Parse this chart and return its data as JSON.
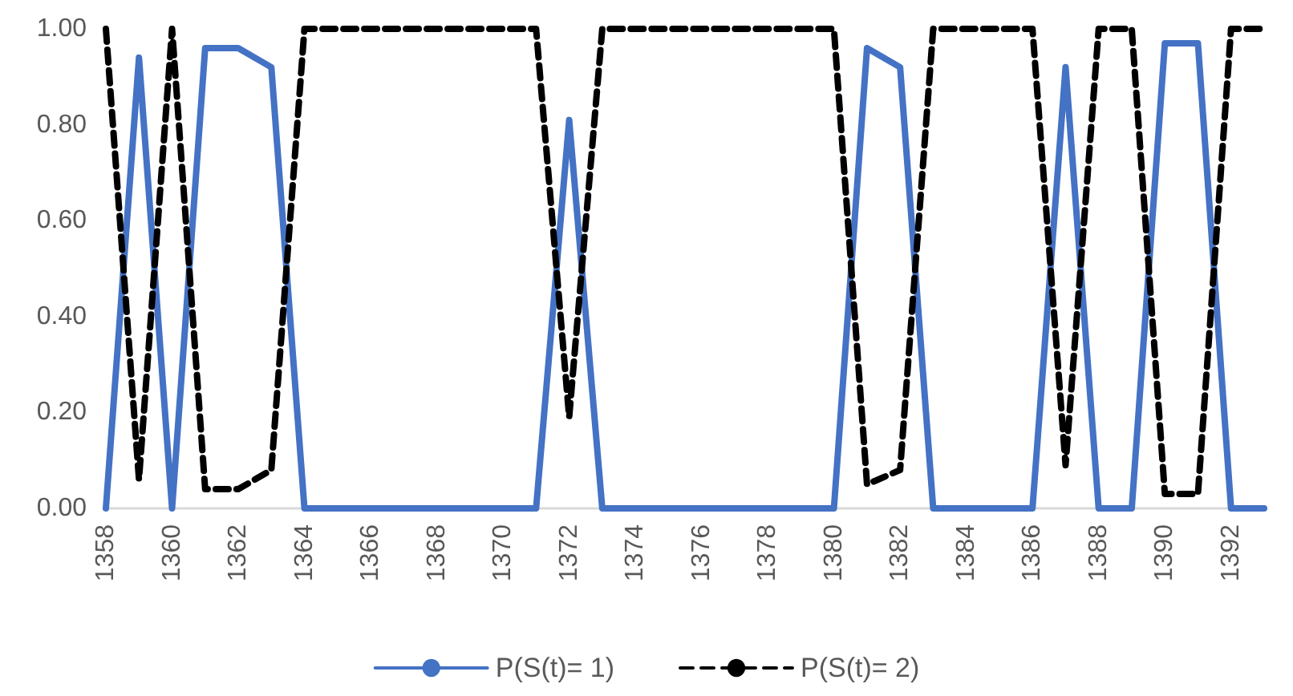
{
  "chart_data": {
    "type": "line",
    "categories": [
      "1358",
      null,
      "1360",
      null,
      "1362",
      null,
      "1364",
      null,
      "1366",
      null,
      "1368",
      null,
      "1370",
      null,
      "1372",
      null,
      "1374",
      null,
      "1376",
      null,
      "1378",
      null,
      "1380",
      null,
      "1382",
      null,
      "1384",
      null,
      "1386",
      null,
      "1388",
      null,
      "1390",
      null,
      "1392",
      null
    ],
    "series": [
      {
        "name": "P(S(t)= 1)",
        "color": "#4472c4",
        "line_style": "solid",
        "values": [
          0,
          0.94,
          0,
          0.96,
          0.96,
          0.92,
          0,
          0,
          0,
          0,
          0,
          0,
          0,
          0,
          0.81,
          0,
          0,
          0,
          0,
          0,
          0,
          0,
          0,
          0.96,
          0.92,
          0,
          0,
          0,
          0,
          0.92,
          0,
          0,
          0.97,
          0.97,
          0,
          0
        ]
      },
      {
        "name": "P(S(t)= 2)",
        "color": "#000000",
        "line_style": "dashed",
        "values": [
          1,
          0.06,
          1,
          0.04,
          0.04,
          0.08,
          1,
          1,
          1,
          1,
          1,
          1,
          1,
          1,
          0.19,
          1,
          1,
          1,
          1,
          1,
          1,
          1,
          1,
          0.05,
          0.08,
          1,
          1,
          1,
          1,
          0.09,
          1,
          1,
          0.03,
          0.03,
          1,
          1
        ]
      }
    ],
    "ylim": [
      0,
      1
    ],
    "yticks": [
      {
        "value": 0,
        "label": "0.00"
      },
      {
        "value": 0.2,
        "label": "0.20"
      },
      {
        "value": 0.4,
        "label": "0.40"
      },
      {
        "value": 0.6,
        "label": "0.60"
      },
      {
        "value": 0.8,
        "label": "0.80"
      },
      {
        "value": 1,
        "label": "1.00"
      }
    ],
    "legend": "bottom",
    "marker": "none"
  }
}
